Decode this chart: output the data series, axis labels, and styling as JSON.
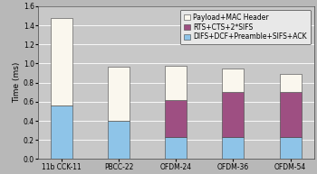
{
  "categories": [
    "11b CCK-11",
    "PBCC-22",
    "OFDM-24",
    "OFDM-36",
    "OFDM-54"
  ],
  "difs_values": [
    0.56,
    0.4,
    0.23,
    0.23,
    0.23
  ],
  "rts_values": [
    0.0,
    0.0,
    0.39,
    0.47,
    0.47
  ],
  "payload_values": [
    0.92,
    0.57,
    0.36,
    0.25,
    0.19
  ],
  "difs_color": "#8ec4e8",
  "rts_color": "#9e4f82",
  "payload_color": "#faf7ee",
  "bar_edge_color": "#444444",
  "background_color": "#b8b8b8",
  "plot_bg_color": "#c8c8c8",
  "ylabel": "Time (ms)",
  "ylim": [
    0.0,
    1.6
  ],
  "yticks": [
    0.0,
    0.2,
    0.4,
    0.6,
    0.8,
    1.0,
    1.2,
    1.4,
    1.6
  ],
  "legend_labels": [
    "Payload+MAC Header",
    "RTS+CTS+2*SIFS",
    "DIFS+DCF+Preamble+SIFS+ACK"
  ],
  "legend_colors": [
    "#faf7ee",
    "#9e4f82",
    "#8ec4e8"
  ],
  "bar_width": 0.38,
  "grid_color": "#aaaaaa",
  "label_fontsize": 6.5,
  "tick_fontsize": 5.5,
  "legend_fontsize": 5.5
}
